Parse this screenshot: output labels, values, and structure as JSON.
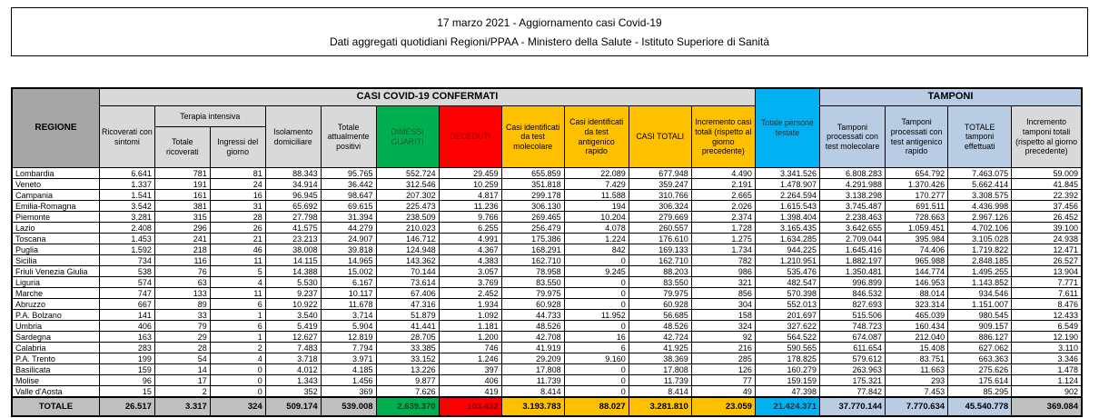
{
  "title": {
    "line1": "17 marzo 2021 - Aggiornamento casi Covid-19",
    "line2": "Dati aggregati quotidiani Regioni/PPAA - Ministero della Salute - Istituto Superiore di Sanità"
  },
  "colors": {
    "green": "#00B050",
    "red": "#FF0000",
    "yellow": "#FFC000",
    "cyan": "#00B0F0",
    "light_blue": "#B8CCE4",
    "header_gray": "#A6A6A6",
    "band_gray": "#D9D9D9",
    "totale_gray": "#BFBFBF"
  },
  "table": {
    "headers": {
      "regione": "REGIONE",
      "casi_group": "CASI COVID-19 CONFERMATI",
      "tamponi_group": "TAMPONI",
      "ricoverati": "Ricoverati con sintomi",
      "terapia_group": "Terapia intensiva",
      "totale_ricoverati": "Totale ricoverati",
      "ingressi_giorno": "Ingressi del giorno",
      "isolamento": "Isolamento domiciliare",
      "attualmente_positivi": "Totale attualmente positivi",
      "dimessi_guariti": "DIMESSI GUARITI",
      "deceduti": "DECEDUTI",
      "casi_molecolare": "Casi identificati da test molecolare",
      "casi_antigenico": "Casi identificati da test antigenico rapido",
      "casi_totali": "CASI TOTALI",
      "incremento_casi": "Incremento casi totali (rispetto al giorno precedente)",
      "persone_testate": "Totale persone testate",
      "tamponi_molecolare": "Tamponi processati con test molecolare",
      "tamponi_antigenico": "Tamponi processati con test antigenico rapido",
      "totale_tamponi": "TOTALE tamponi effettuati",
      "incremento_tamponi": "Incremento tamponi totali (rispetto al giorno precedente)"
    },
    "rows": [
      {
        "regione": "Lombardia",
        "values": [
          "6.641",
          "781",
          "81",
          "88.343",
          "95.765",
          "552.724",
          "29.459",
          "655.859",
          "22.089",
          "677.948",
          "4.490",
          "3.341.526",
          "6.808.283",
          "654.792",
          "7.463.075",
          "59.009"
        ]
      },
      {
        "regione": "Veneto",
        "values": [
          "1.337",
          "191",
          "24",
          "34.914",
          "36.442",
          "312.546",
          "10.259",
          "351.818",
          "7.429",
          "359.247",
          "2.191",
          "1.478.907",
          "4.291.988",
          "1.370.426",
          "5.662.414",
          "41.845"
        ]
      },
      {
        "regione": "Campania",
        "values": [
          "1.541",
          "161",
          "16",
          "96.945",
          "98.647",
          "207.302",
          "4.817",
          "299.178",
          "11.588",
          "310.766",
          "2.665",
          "2.264.594",
          "3.138.298",
          "170.277",
          "3.308.575",
          "22.392"
        ]
      },
      {
        "regione": "Emilia-Romagna",
        "values": [
          "3.542",
          "381",
          "31",
          "65.692",
          "69.615",
          "225.473",
          "11.236",
          "306.130",
          "194",
          "306.324",
          "2.026",
          "1.615.543",
          "3.745.487",
          "691.511",
          "4.436.998",
          "37.456"
        ]
      },
      {
        "regione": "Piemonte",
        "values": [
          "3.281",
          "315",
          "28",
          "27.798",
          "31.394",
          "238.509",
          "9.766",
          "269.465",
          "10.204",
          "279.669",
          "2.374",
          "1.398.404",
          "2.238.463",
          "728.663",
          "2.967.126",
          "26.452"
        ]
      },
      {
        "regione": "Lazio",
        "values": [
          "2.408",
          "296",
          "26",
          "41.575",
          "44.279",
          "210.023",
          "6.255",
          "256.479",
          "4.078",
          "260.557",
          "1.728",
          "3.165.435",
          "3.642.655",
          "1.059.451",
          "4.702.106",
          "39.100"
        ]
      },
      {
        "regione": "Toscana",
        "values": [
          "1.453",
          "241",
          "21",
          "23.213",
          "24.907",
          "146.712",
          "4.991",
          "175.386",
          "1.224",
          "176.610",
          "1.275",
          "1.634.285",
          "2.709.044",
          "395.984",
          "3.105.028",
          "24.938"
        ]
      },
      {
        "regione": "Puglia",
        "values": [
          "1.592",
          "218",
          "46",
          "38.008",
          "39.818",
          "124.948",
          "4.367",
          "168.291",
          "842",
          "169.133",
          "1.734",
          "944.225",
          "1.645.416",
          "74.406",
          "1.719.822",
          "12.471"
        ]
      },
      {
        "regione": "Sicilia",
        "values": [
          "734",
          "116",
          "11",
          "14.115",
          "14.965",
          "143.362",
          "4.383",
          "162.710",
          "0",
          "162.710",
          "782",
          "1.210.951",
          "1.882.197",
          "965.988",
          "2.848.185",
          "26.527"
        ]
      },
      {
        "regione": "Friuli Venezia Giulia",
        "values": [
          "538",
          "76",
          "5",
          "14.388",
          "15.002",
          "70.144",
          "3.057",
          "78.958",
          "9.245",
          "88.203",
          "986",
          "535.476",
          "1.350.481",
          "144.774",
          "1.495.255",
          "13.904"
        ]
      },
      {
        "regione": "Liguria",
        "values": [
          "574",
          "63",
          "4",
          "5.530",
          "6.167",
          "73.614",
          "3.769",
          "83.550",
          "0",
          "83.550",
          "321",
          "482.547",
          "996.899",
          "146.953",
          "1.143.852",
          "7.771"
        ]
      },
      {
        "regione": "Marche",
        "values": [
          "747",
          "133",
          "11",
          "9.237",
          "10.117",
          "67.406",
          "2.452",
          "79.975",
          "0",
          "79.975",
          "856",
          "570.398",
          "846.532",
          "88.014",
          "934.546",
          "7.611"
        ]
      },
      {
        "regione": "Abruzzo",
        "values": [
          "667",
          "89",
          "6",
          "10.922",
          "11.678",
          "47.316",
          "1.934",
          "60.928",
          "0",
          "60.928",
          "304",
          "552.013",
          "827.693",
          "323.314",
          "1.151.007",
          "8.476"
        ]
      },
      {
        "regione": "P.A. Bolzano",
        "values": [
          "141",
          "33",
          "1",
          "3.540",
          "3.714",
          "51.879",
          "1.092",
          "44.733",
          "11.952",
          "56.685",
          "158",
          "201.697",
          "515.506",
          "465.039",
          "980.545",
          "12.433"
        ]
      },
      {
        "regione": "Umbria",
        "values": [
          "406",
          "79",
          "6",
          "5.419",
          "5.904",
          "41.441",
          "1.181",
          "48.526",
          "0",
          "48.526",
          "324",
          "327.622",
          "748.723",
          "160.434",
          "909.157",
          "6.549"
        ]
      },
      {
        "regione": "Sardegna",
        "values": [
          "163",
          "29",
          "1",
          "12.627",
          "12.819",
          "28.705",
          "1.200",
          "42.708",
          "16",
          "42.724",
          "92",
          "564.522",
          "674.087",
          "212.040",
          "886.127",
          "12.190"
        ]
      },
      {
        "regione": "Calabria",
        "values": [
          "283",
          "28",
          "2",
          "7.483",
          "7.794",
          "33.385",
          "746",
          "41.919",
          "6",
          "41.925",
          "216",
          "590.565",
          "611.654",
          "15.408",
          "627.062",
          "3.110"
        ]
      },
      {
        "regione": "P.A. Trento",
        "values": [
          "199",
          "54",
          "4",
          "3.718",
          "3.971",
          "33.152",
          "1.246",
          "29.209",
          "9.160",
          "38.369",
          "285",
          "178.825",
          "579.612",
          "83.751",
          "663.363",
          "3.346"
        ]
      },
      {
        "regione": "Basilicata",
        "values": [
          "159",
          "14",
          "0",
          "4.012",
          "4.185",
          "13.226",
          "397",
          "17.808",
          "0",
          "17.808",
          "126",
          "160.279",
          "263.963",
          "11.663",
          "275.626",
          "1.478"
        ]
      },
      {
        "regione": "Molise",
        "values": [
          "96",
          "17",
          "0",
          "1.343",
          "1.456",
          "9.877",
          "406",
          "11.739",
          "0",
          "11.739",
          "77",
          "159.159",
          "175.321",
          "293",
          "175.614",
          "1.124"
        ]
      },
      {
        "regione": "Valle d'Aosta",
        "values": [
          "15",
          "2",
          "0",
          "352",
          "369",
          "7.626",
          "419",
          "8.414",
          "0",
          "8.414",
          "49",
          "47.398",
          "77.842",
          "7.453",
          "85.295",
          "902"
        ]
      }
    ],
    "totale": {
      "label": "TOTALE",
      "values": [
        "26.517",
        "3.317",
        "324",
        "509.174",
        "539.008",
        "2.639.370",
        "103.432",
        "3.193.783",
        "88.027",
        "3.281.810",
        "23.059",
        "21.424.371",
        "37.770.144",
        "7.770.634",
        "45.540.778",
        "369.084"
      ]
    }
  }
}
